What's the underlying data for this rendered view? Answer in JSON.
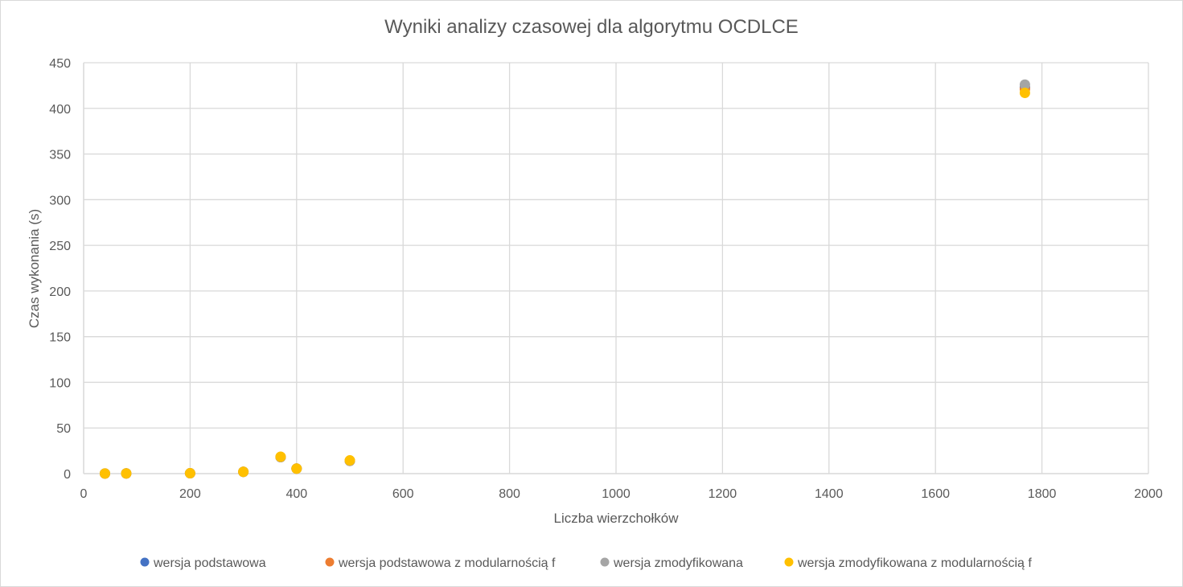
{
  "chart_data": {
    "type": "scatter",
    "title": "Wyniki analizy czasowej dla algorytmu OCDLCE",
    "xlabel": "Liczba wierzchołków",
    "ylabel": "Czas wykonania (s)",
    "xlim": [
      0,
      2000
    ],
    "ylim": [
      0,
      450
    ],
    "xticks": [
      0,
      200,
      400,
      600,
      800,
      1000,
      1200,
      1400,
      1600,
      1800,
      2000
    ],
    "yticks": [
      0,
      50,
      100,
      150,
      200,
      250,
      300,
      350,
      400,
      450
    ],
    "grid": true,
    "legend_position": "bottom",
    "series": [
      {
        "name": "wersja podstawowa",
        "color": "#4472C4",
        "points": [
          [
            40,
            0.1
          ],
          [
            80,
            0.2
          ],
          [
            200,
            0.4
          ],
          [
            300,
            2.0
          ],
          [
            370,
            18.0
          ],
          [
            400,
            5.5
          ],
          [
            500,
            14.0
          ],
          [
            1768,
            423
          ]
        ]
      },
      {
        "name": "wersja podstawowa z modularnością f",
        "color": "#ED7D31",
        "points": [
          [
            40,
            0.1
          ],
          [
            80,
            0.2
          ],
          [
            200,
            0.4
          ],
          [
            300,
            2.0
          ],
          [
            370,
            18.0
          ],
          [
            400,
            5.5
          ],
          [
            500,
            14.0
          ],
          [
            1768,
            421
          ]
        ]
      },
      {
        "name": "wersja zmodyfikowana",
        "color": "#A5A5A5",
        "points": [
          [
            40,
            0.1
          ],
          [
            80,
            0.2
          ],
          [
            200,
            0.4
          ],
          [
            300,
            2.0
          ],
          [
            370,
            18.0
          ],
          [
            400,
            5.5
          ],
          [
            500,
            14.0
          ],
          [
            1768,
            426
          ]
        ]
      },
      {
        "name": "wersja zmodyfikowana z modularnością f",
        "color": "#FFC000",
        "points": [
          [
            40,
            0.1
          ],
          [
            80,
            0.2
          ],
          [
            200,
            0.4
          ],
          [
            300,
            2.0
          ],
          [
            370,
            18.5
          ],
          [
            400,
            5.5
          ],
          [
            500,
            14.5
          ],
          [
            1768,
            417
          ]
        ]
      }
    ]
  }
}
